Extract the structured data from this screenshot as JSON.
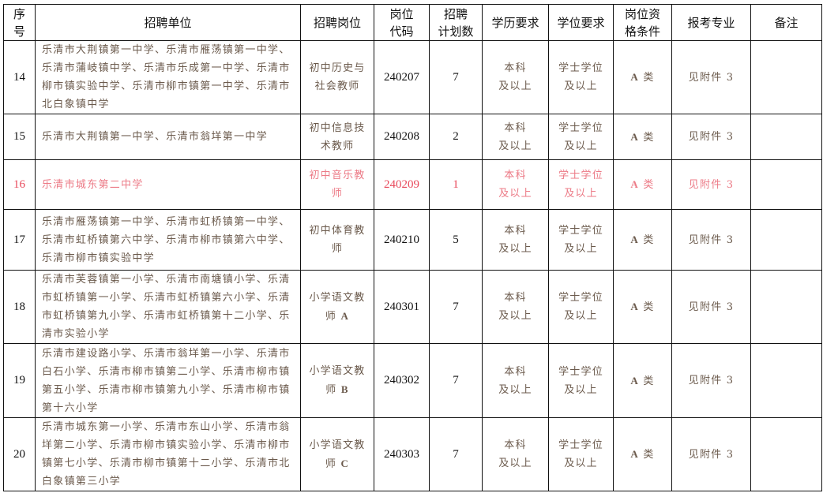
{
  "headers": [
    "序号",
    "招聘单位",
    "招聘岗位",
    "岗位代码",
    "招聘计划数",
    "学历要求",
    "学位要求",
    "岗位资格条件",
    "报考专业",
    "备注"
  ],
  "header_lines": {
    "seq": [
      "序",
      "号"
    ],
    "code": [
      "岗位",
      "代码"
    ],
    "plan": [
      "招聘",
      "计划数"
    ],
    "qual": [
      "岗位资",
      "格条件"
    ]
  },
  "highlight_color": "#e8485a",
  "rows": [
    {
      "seq": "14",
      "unit": "乐清市大荆镇第一中学、乐清市雁荡镇第一中学、乐清市蒲岐镇中学、乐清市乐成第一中学、乐清市柳市镇实验中学、乐清市柳市镇第一中学、乐清市北白象镇中学",
      "post": "初中历史与社会教师",
      "code": "240207",
      "plan": "7",
      "edu": "本科及以上",
      "degree": "学士学位及以上",
      "qual": "A 类",
      "major": "见附件 3",
      "note": "",
      "highlight": false
    },
    {
      "seq": "15",
      "unit": "乐清市大荆镇第一中学、乐清市翁垟第一中学",
      "post": "初中信息技术教师",
      "code": "240208",
      "plan": "2",
      "edu": "本科及以上",
      "degree": "学士学位及以上",
      "qual": "A 类",
      "major": "见附件 3",
      "note": "",
      "highlight": false
    },
    {
      "seq": "16",
      "unit": "乐清市城东第二中学",
      "post": "初中音乐教师",
      "code": "240209",
      "plan": "1",
      "edu": "本科及以上",
      "degree": "学士学位及以上",
      "qual": "A 类",
      "major": "见附件 3",
      "note": "",
      "highlight": true
    },
    {
      "seq": "17",
      "unit": "乐清市雁荡镇第一中学、乐清市虹桥镇第一中学、乐清市虹桥镇第六中学、乐清市柳市镇第六中学、乐清市柳市镇实验中学",
      "post": "初中体育教师",
      "code": "240210",
      "plan": "5",
      "edu": "本科及以上",
      "degree": "学士学位及以上",
      "qual": "A 类",
      "major": "见附件 3",
      "note": "",
      "highlight": false
    },
    {
      "seq": "18",
      "unit": "乐清市芙蓉镇第一小学、乐清市南塘镇小学、乐清市虹桥镇第一小学、乐清市虹桥镇第六小学、乐清市虹桥镇第九小学、乐清市虹桥镇第十二小学、乐清市实验小学",
      "post": "小学语文教师 A",
      "code": "240301",
      "plan": "7",
      "edu": "本科及以上",
      "degree": "学士学位及以上",
      "qual": "A 类",
      "major": "见附件 3",
      "note": "",
      "highlight": false
    },
    {
      "seq": "19",
      "unit": "乐清市建设路小学、乐清市翁垟第一小学、乐清市白石小学、乐清市柳市镇第二小学、乐清市柳市镇第五小学、乐清市柳市镇第九小学、乐清市柳市镇第十六小学",
      "post": "小学语文教师 B",
      "code": "240302",
      "plan": "7",
      "edu": "本科及以上",
      "degree": "学士学位及以上",
      "qual": "A 类",
      "major": "见附件 3",
      "note": "",
      "highlight": false
    },
    {
      "seq": "20",
      "unit": "乐清市城东第一小学、乐清市东山小学、乐清市翁垟第二小学、乐清市柳市镇实验小学、乐清市柳市镇第七小学、乐清市柳市镇第十二小学、乐清市北白象镇第三小学",
      "post": "小学语文教师 C",
      "code": "240303",
      "plan": "7",
      "edu": "本科及以上",
      "degree": "学士学位及以上",
      "qual": "A 类",
      "major": "见附件 3",
      "note": "",
      "highlight": false
    }
  ]
}
